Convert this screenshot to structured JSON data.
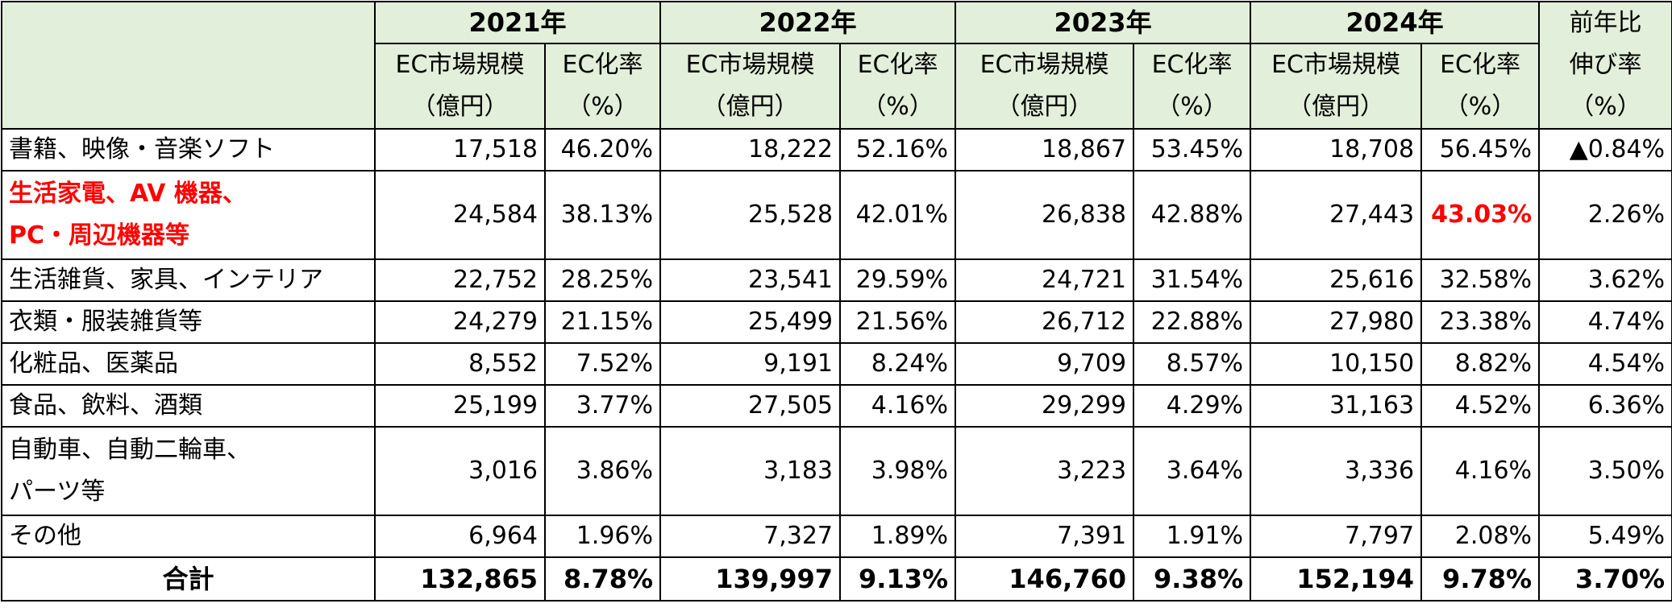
{
  "header": {
    "years": [
      "2021年",
      "2022年",
      "2023年",
      "2024年"
    ],
    "col_market_line1": "EC市場規模",
    "col_market_line2": "（億円）",
    "col_rate_line1": "EC化率",
    "col_rate_line2": "（%）",
    "col_growth_line1": "前年比",
    "col_growth_line2": "伸び率",
    "col_growth_line3": "（%）"
  },
  "rows": [
    {
      "label": [
        "書籍、映像・音楽ソフト"
      ],
      "cells": [
        "17,518",
        "46.20%",
        "18,222",
        "52.16%",
        "18,867",
        "53.45%",
        "18,708",
        "56.45%",
        "▲0.84%"
      ]
    },
    {
      "label": [
        "生活家電、AV 機器、",
        "PC・周辺機器等"
      ],
      "cells": [
        "24,584",
        "38.13%",
        "25,528",
        "42.01%",
        "26,838",
        "42.88%",
        "27,443",
        "43.03%",
        "2.26%"
      ]
    },
    {
      "label": [
        "生活雑貨、家具、インテリア"
      ],
      "cells": [
        "22,752",
        "28.25%",
        "23,541",
        "29.59%",
        "24,721",
        "31.54%",
        "25,616",
        "32.58%",
        "3.62%"
      ]
    },
    {
      "label": [
        "衣類・服装雑貨等"
      ],
      "cells": [
        "24,279",
        "21.15%",
        "25,499",
        "21.56%",
        "26,712",
        "22.88%",
        "27,980",
        "23.38%",
        "4.74%"
      ]
    },
    {
      "label": [
        "化粧品、医薬品"
      ],
      "cells": [
        "8,552",
        "7.52%",
        "9,191",
        "8.24%",
        "9,709",
        "8.57%",
        "10,150",
        "8.82%",
        "4.54%"
      ]
    },
    {
      "label": [
        "食品、飲料、酒類"
      ],
      "cells": [
        "25,199",
        "3.77%",
        "27,505",
        "4.16%",
        "29,299",
        "4.29%",
        "31,163",
        "4.52%",
        "6.36%"
      ]
    },
    {
      "label": [
        "自動車、自動二輪車、",
        "パーツ等"
      ],
      "cells": [
        "3,016",
        "3.86%",
        "3,183",
        "3.98%",
        "3,223",
        "3.64%",
        "3,336",
        "4.16%",
        "3.50%"
      ]
    },
    {
      "label": [
        "その他"
      ],
      "cells": [
        "6,964",
        "1.96%",
        "7,327",
        "1.89%",
        "7,391",
        "1.91%",
        "7,797",
        "2.08%",
        "5.49%"
      ]
    }
  ],
  "total": {
    "label": "合計",
    "cells": [
      "132,865",
      "8.78%",
      "139,997",
      "9.13%",
      "146,760",
      "9.38%",
      "152,194",
      "9.78%",
      "3.70%"
    ]
  },
  "colors": {
    "header_bg": "#e2efda",
    "highlight_text": "#ff0000",
    "border": "#000000"
  }
}
